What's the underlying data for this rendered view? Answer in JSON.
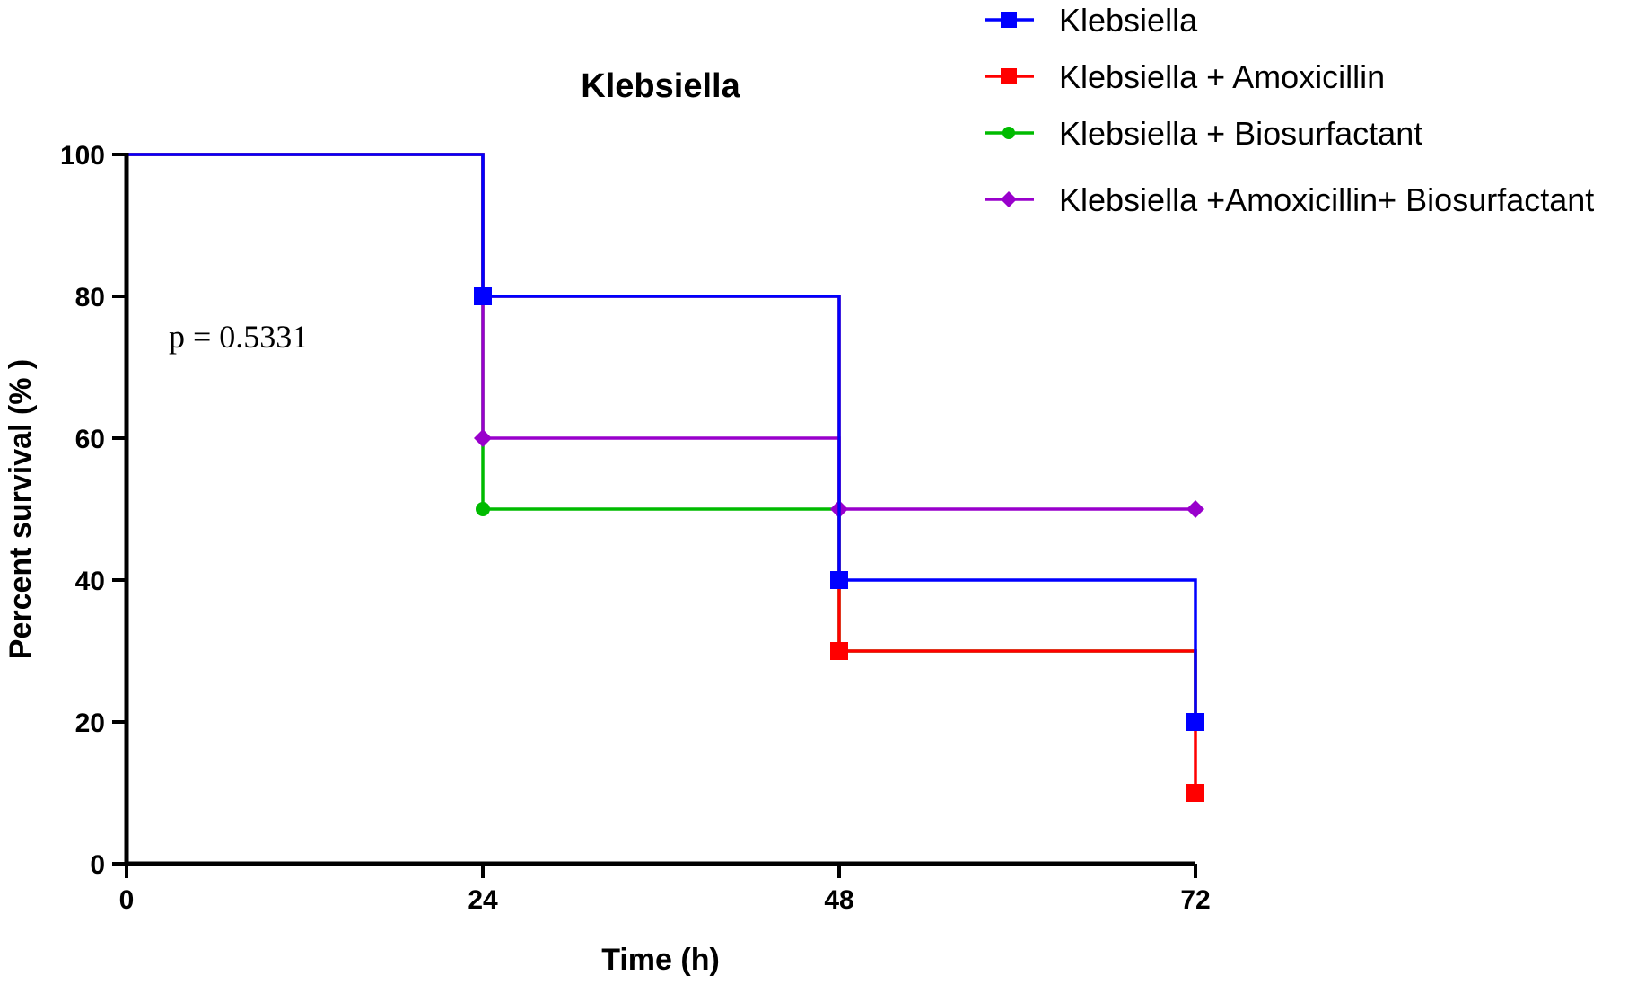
{
  "chart_data": {
    "type": "line",
    "subtype": "step-survival",
    "title": "Klebsiella",
    "xlabel": "Time (h)",
    "ylabel": "Percent survival (% )",
    "xlim": [
      0,
      72
    ],
    "ylim": [
      0,
      100
    ],
    "xticks": [
      0,
      24,
      48,
      72
    ],
    "yticks": [
      0,
      20,
      40,
      60,
      80,
      100
    ],
    "grid": false,
    "legend_position": "top-right",
    "annotation": "p = 0.5331",
    "series": [
      {
        "name": "Klebsiella",
        "color": "#0000ff",
        "marker": "square",
        "x": [
          0,
          24,
          48,
          72
        ],
        "y": [
          100,
          80,
          40,
          20
        ]
      },
      {
        "name": "Klebsiella + Amoxicillin",
        "color": "#ff0000",
        "marker": "square",
        "x": [
          0,
          24,
          48,
          72
        ],
        "y": [
          100,
          80,
          30,
          10
        ]
      },
      {
        "name": "Klebsiella + Biosurfactant",
        "color": "#00bb00",
        "marker": "circle",
        "x": [
          0,
          24,
          48,
          72
        ],
        "y": [
          100,
          50,
          30,
          20
        ]
      },
      {
        "name": "Klebsiella +Amoxicillin+ Biosurfactant",
        "color": "#9900cc",
        "marker": "diamond",
        "x": [
          0,
          24,
          48,
          72
        ],
        "y": [
          100,
          60,
          50,
          50
        ]
      }
    ]
  }
}
